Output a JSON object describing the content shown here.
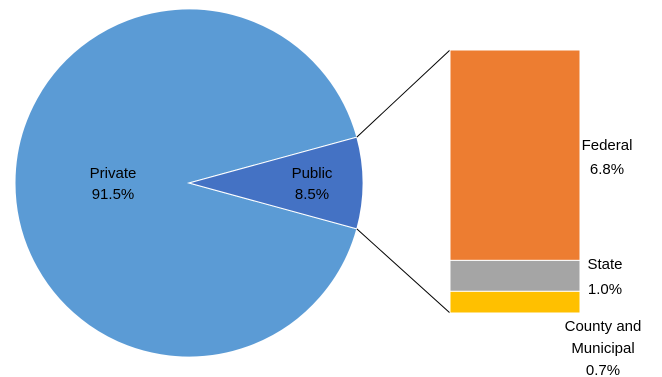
{
  "chart_data": {
    "type": "bar-of-pie",
    "pie": {
      "slices": [
        {
          "name": "Private",
          "percent_label": "91.5%",
          "value": 91.5,
          "color": "#5B9BD5"
        },
        {
          "name": "Public",
          "percent_label": "8.5%",
          "value": 8.5,
          "color": "#4472C4"
        }
      ]
    },
    "bar": {
      "breakdown_of": "Public",
      "segments": [
        {
          "name": "Federal",
          "percent_label": "6.8%",
          "value": 6.8,
          "color": "#ED7D31"
        },
        {
          "name": "State",
          "percent_label": "1.0%",
          "value": 1.0,
          "color": "#A5A5A5"
        },
        {
          "name_lines": [
            "County and",
            "Municipal"
          ],
          "percent_label": "0.7%",
          "value": 0.7,
          "color": "#FFC000"
        }
      ]
    }
  }
}
